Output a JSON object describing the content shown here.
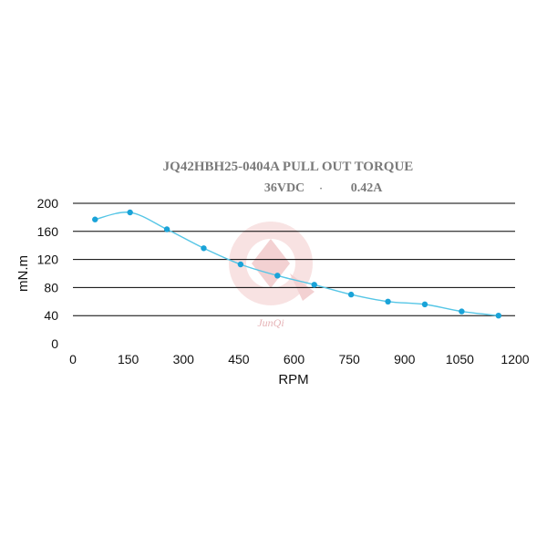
{
  "chart_data": {
    "type": "line",
    "title": "JQ42HBH25-0404A PULL OUT TORQUE",
    "subtitle_voltage": "36VDC",
    "subtitle_current": "0.42A",
    "xlabel": "RPM",
    "ylabel": "mN.m",
    "xlim": [
      0,
      1200
    ],
    "ylim": [
      0,
      200
    ],
    "x_ticks": [
      "0",
      "150",
      "300",
      "450",
      "600",
      "750",
      "900",
      "1050",
      "1200"
    ],
    "y_ticks": [
      "0",
      "40",
      "80",
      "120",
      "160",
      "200"
    ],
    "grid": "horizontal",
    "series": [
      {
        "x": [
          60,
          155,
          255,
          355,
          455,
          555,
          655,
          755,
          855,
          955,
          1055,
          1155
        ],
        "y": [
          177,
          187,
          163,
          136,
          113,
          97,
          84,
          70,
          60,
          56,
          46,
          40
        ]
      }
    ],
    "line_color": "#56c6e6",
    "marker_color": "#1aa3d8",
    "grid_color": "#000000",
    "watermark_text": "JunQi"
  }
}
